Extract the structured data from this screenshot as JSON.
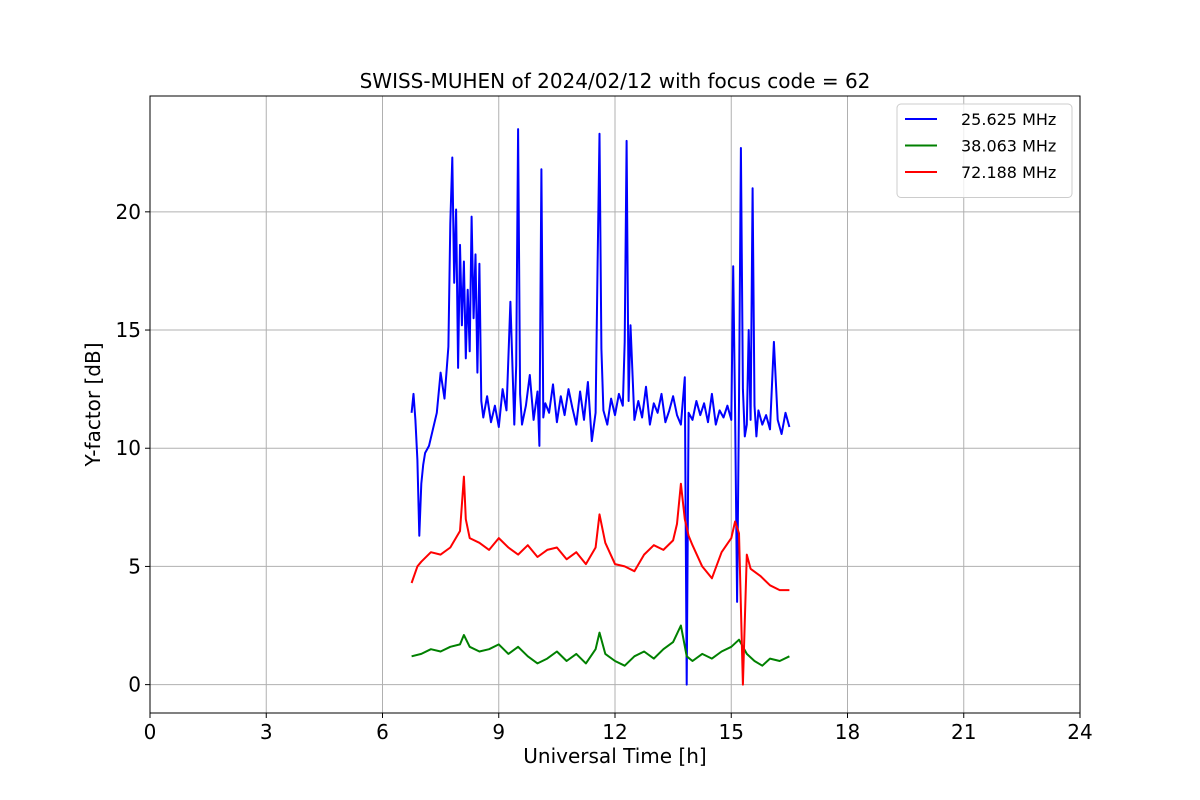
{
  "chart_data": {
    "type": "line",
    "title": "SWISS-MUHEN of 2024/02/12 with focus code = 62",
    "xlabel": "Universal Time [h]",
    "ylabel": "Y-factor [dB]",
    "xlim": [
      0,
      24
    ],
    "ylim": [
      -1.2,
      24.9
    ],
    "xticks": [
      0,
      3,
      6,
      9,
      12,
      15,
      18,
      21,
      24
    ],
    "yticks": [
      0,
      5,
      10,
      15,
      20
    ],
    "grid": true,
    "legend_position": "top-right",
    "series": [
      {
        "name": "25.625 MHz",
        "color": "#0000ff",
        "x": [
          6.75,
          6.8,
          6.85,
          6.9,
          6.95,
          7.0,
          7.05,
          7.1,
          7.2,
          7.3,
          7.4,
          7.5,
          7.6,
          7.7,
          7.75,
          7.8,
          7.85,
          7.9,
          7.95,
          8.0,
          8.05,
          8.1,
          8.15,
          8.2,
          8.25,
          8.3,
          8.35,
          8.4,
          8.45,
          8.5,
          8.55,
          8.6,
          8.7,
          8.8,
          8.9,
          9.0,
          9.1,
          9.2,
          9.3,
          9.4,
          9.45,
          9.5,
          9.55,
          9.6,
          9.7,
          9.8,
          9.9,
          10.0,
          10.05,
          10.1,
          10.15,
          10.2,
          10.3,
          10.4,
          10.5,
          10.6,
          10.7,
          10.8,
          10.9,
          11.0,
          11.1,
          11.2,
          11.3,
          11.4,
          11.5,
          11.55,
          11.6,
          11.65,
          11.7,
          11.8,
          11.9,
          12.0,
          12.1,
          12.2,
          12.25,
          12.3,
          12.35,
          12.4,
          12.5,
          12.6,
          12.7,
          12.8,
          12.9,
          13.0,
          13.1,
          13.2,
          13.3,
          13.4,
          13.5,
          13.6,
          13.7,
          13.8,
          13.85,
          13.9,
          14.0,
          14.1,
          14.2,
          14.3,
          14.4,
          14.5,
          14.6,
          14.7,
          14.8,
          14.9,
          15.0,
          15.05,
          15.1,
          15.15,
          15.2,
          15.25,
          15.3,
          15.35,
          15.4,
          15.45,
          15.5,
          15.55,
          15.6,
          15.65,
          15.7,
          15.8,
          15.9,
          16.0,
          16.1,
          16.2,
          16.3,
          16.4,
          16.5
        ],
        "y": [
          11.5,
          12.3,
          11.2,
          9.5,
          6.3,
          8.5,
          9.3,
          9.8,
          10.1,
          10.8,
          11.5,
          13.2,
          12.1,
          14.3,
          19.5,
          22.3,
          17.0,
          20.1,
          13.4,
          18.6,
          15.2,
          17.9,
          13.8,
          16.7,
          14.1,
          19.8,
          15.5,
          18.2,
          13.2,
          17.8,
          12.0,
          11.3,
          12.2,
          11.1,
          11.8,
          10.9,
          12.5,
          11.6,
          16.2,
          11.0,
          13.5,
          23.5,
          12.3,
          11.0,
          11.8,
          13.1,
          11.2,
          12.4,
          10.1,
          21.8,
          11.3,
          11.9,
          11.5,
          12.7,
          11.1,
          12.2,
          11.4,
          12.5,
          11.7,
          11.0,
          12.4,
          11.2,
          12.8,
          10.3,
          11.5,
          17.8,
          23.3,
          14.2,
          11.6,
          11.0,
          12.1,
          11.4,
          12.3,
          11.8,
          14.5,
          23.0,
          12.0,
          15.2,
          11.2,
          12.0,
          11.3,
          12.6,
          11.0,
          11.9,
          11.5,
          12.3,
          11.1,
          11.6,
          12.2,
          11.4,
          11.0,
          13.0,
          0.0,
          11.5,
          11.2,
          12.0,
          11.4,
          11.9,
          11.1,
          12.3,
          11.0,
          11.6,
          11.3,
          11.8,
          11.2,
          17.7,
          11.5,
          3.5,
          12.0,
          22.7,
          12.5,
          10.5,
          11.0,
          15.0,
          11.2,
          21.0,
          11.8,
          10.5,
          11.6,
          11.0,
          11.4,
          10.8,
          14.5,
          11.2,
          10.6,
          11.5,
          10.9
        ]
      },
      {
        "name": "38.063 MHz",
        "color": "#008000",
        "x": [
          6.75,
          7.0,
          7.25,
          7.5,
          7.75,
          8.0,
          8.1,
          8.25,
          8.5,
          8.75,
          9.0,
          9.25,
          9.5,
          9.75,
          10.0,
          10.25,
          10.5,
          10.75,
          11.0,
          11.25,
          11.5,
          11.6,
          11.75,
          12.0,
          12.25,
          12.5,
          12.75,
          13.0,
          13.25,
          13.5,
          13.7,
          13.85,
          14.0,
          14.25,
          14.5,
          14.75,
          15.0,
          15.2,
          15.4,
          15.6,
          15.8,
          16.0,
          16.25,
          16.5
        ],
        "y": [
          1.2,
          1.3,
          1.5,
          1.4,
          1.6,
          1.7,
          2.1,
          1.6,
          1.4,
          1.5,
          1.7,
          1.3,
          1.6,
          1.2,
          0.9,
          1.1,
          1.4,
          1.0,
          1.3,
          0.9,
          1.5,
          2.2,
          1.3,
          1.0,
          0.8,
          1.2,
          1.4,
          1.1,
          1.5,
          1.8,
          2.5,
          1.2,
          1.0,
          1.3,
          1.1,
          1.4,
          1.6,
          1.9,
          1.3,
          1.0,
          0.8,
          1.1,
          1.0,
          1.2
        ]
      },
      {
        "name": "72.188 MHz",
        "color": "#ff0000",
        "x": [
          6.75,
          6.9,
          7.0,
          7.25,
          7.5,
          7.75,
          8.0,
          8.1,
          8.15,
          8.25,
          8.5,
          8.75,
          9.0,
          9.25,
          9.5,
          9.75,
          10.0,
          10.25,
          10.5,
          10.75,
          11.0,
          11.25,
          11.5,
          11.6,
          11.75,
          12.0,
          12.25,
          12.5,
          12.75,
          13.0,
          13.25,
          13.5,
          13.6,
          13.7,
          13.8,
          13.9,
          14.0,
          14.25,
          14.5,
          14.75,
          15.0,
          15.1,
          15.2,
          15.3,
          15.4,
          15.5,
          15.75,
          16.0,
          16.25,
          16.5
        ],
        "y": [
          4.3,
          5.0,
          5.2,
          5.6,
          5.5,
          5.8,
          6.5,
          8.8,
          7.0,
          6.2,
          6.0,
          5.7,
          6.2,
          5.8,
          5.5,
          5.9,
          5.4,
          5.7,
          5.8,
          5.3,
          5.6,
          5.1,
          5.8,
          7.2,
          6.0,
          5.1,
          5.0,
          4.8,
          5.5,
          5.9,
          5.7,
          6.1,
          6.8,
          8.5,
          7.0,
          6.3,
          5.9,
          5.0,
          4.5,
          5.6,
          6.2,
          6.9,
          6.4,
          0.0,
          5.5,
          4.9,
          4.6,
          4.2,
          4.0,
          4.0
        ]
      }
    ]
  }
}
